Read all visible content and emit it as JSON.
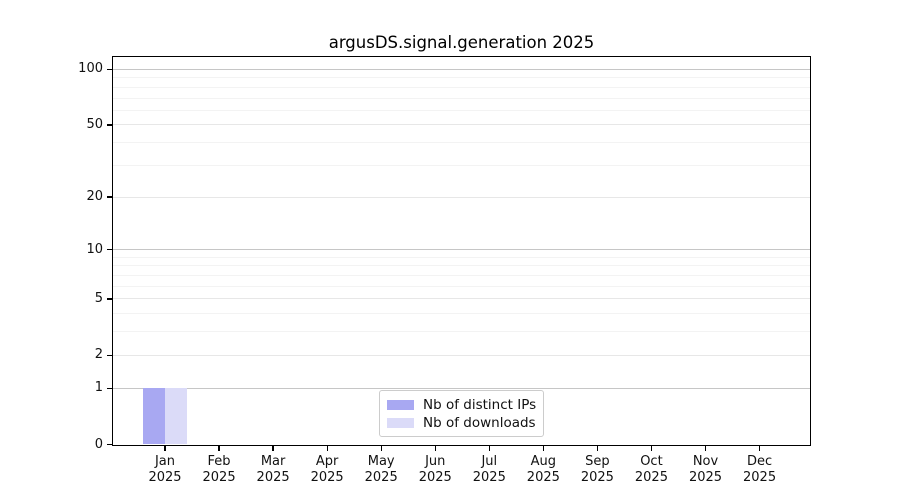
{
  "chart_data": {
    "type": "bar",
    "title": "argusDS.signal.generation 2025",
    "categories": [
      "Jan",
      "Feb",
      "Mar",
      "Apr",
      "May",
      "Jun",
      "Jul",
      "Aug",
      "Sep",
      "Oct",
      "Nov",
      "Dec"
    ],
    "category_year": "2025",
    "series": [
      {
        "name": "Nb of distinct IPs",
        "color": "#a8a8f2",
        "values": [
          1,
          0,
          0,
          0,
          0,
          0,
          0,
          0,
          0,
          0,
          0,
          0
        ]
      },
      {
        "name": "Nb of downloads",
        "color": "#dbdbf8",
        "values": [
          1,
          0,
          0,
          0,
          0,
          0,
          0,
          0,
          0,
          0,
          0,
          0
        ]
      }
    ],
    "xlabel": "",
    "ylabel": "",
    "y_scale": "log1p",
    "y_ticks": [
      0,
      1,
      2,
      5,
      10,
      20,
      50,
      100
    ],
    "y_minor_ticks": [
      3,
      4,
      6,
      7,
      8,
      9,
      30,
      40,
      60,
      70,
      80,
      90
    ],
    "y_decade_ticks": [
      1,
      10,
      100
    ],
    "ylim": [
      0,
      116
    ],
    "grid": "on",
    "legend_position": "bottom-center",
    "colors": {
      "grid_decade": "#c6c6c6",
      "grid_major": "#e7e7e7",
      "grid_minor": "#f3f3f3",
      "spine": "#000000",
      "text": "#111111",
      "legend_border": "#cccccc",
      "legend_background": "#ffffff",
      "page_background": "#ffffff"
    }
  }
}
